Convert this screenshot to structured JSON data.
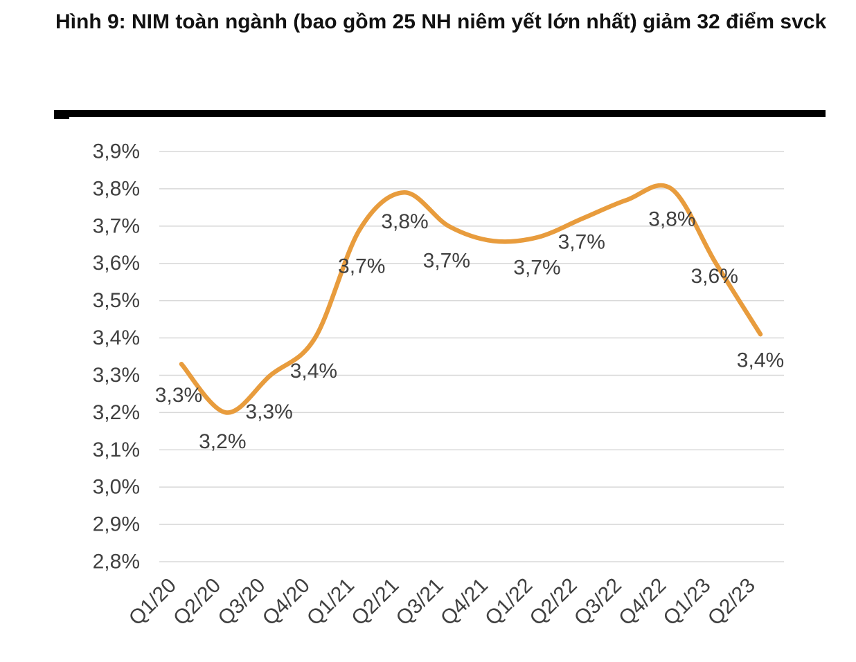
{
  "page": {
    "title": "Hình 9: NIM toàn ngành (bao gồm 25 NH niêm yết lớn nhất) giảm 32 điểm svck"
  },
  "chart_data": {
    "type": "line",
    "title": "Hình 9: NIM toàn ngành (bao gồm 25 NH niêm yết lớn nhất) giảm 32 điểm svck",
    "xlabel": "",
    "ylabel": "",
    "unit": "%",
    "decimal_separator": ",",
    "categories": [
      "Q1/20",
      "Q2/20",
      "Q3/20",
      "Q4/20",
      "Q1/21",
      "Q2/21",
      "Q3/21",
      "Q4/21",
      "Q1/22",
      "Q2/22",
      "Q3/22",
      "Q4/22",
      "Q1/23",
      "Q2/23"
    ],
    "values": [
      3.33,
      3.2,
      3.3,
      3.4,
      3.69,
      3.79,
      3.7,
      3.66,
      3.67,
      3.72,
      3.77,
      3.8,
      3.6,
      3.41
    ],
    "point_labels": [
      "3,3%",
      "3,2%",
      "3,3%",
      "3,4%",
      "3,7%",
      "3,8%",
      "3,7%",
      "",
      "3,7%",
      "3,7%",
      "",
      "3,8%",
      "3,6%",
      "3,4%"
    ],
    "ylim": [
      2.8,
      3.9
    ],
    "ytick_step": 0.1,
    "ytick_values": [
      3.9,
      3.8,
      3.7,
      3.6,
      3.5,
      3.4,
      3.3,
      3.2,
      3.1,
      3.0,
      2.9,
      2.8
    ],
    "ytick_labels": [
      "3,9%",
      "3,8%",
      "3,7%",
      "3,6%",
      "3,5%",
      "3,4%",
      "3,3%",
      "3,2%",
      "3,1%",
      "3,0%",
      "2,9%",
      "2,8%"
    ],
    "grid": "horizontal",
    "legend_position": "none",
    "line_smooth": true,
    "colors": {
      "line": "#E89C3D",
      "labels": "#404040",
      "grid": "#D8D8D8",
      "title": "#121212",
      "rule": "#000000"
    },
    "label_offsets": [
      [
        -4,
        45
      ],
      [
        -5,
        42
      ],
      [
        -2,
        53
      ],
      [
        -2,
        48
      ],
      [
        3,
        53
      ],
      [
        1,
        42
      ],
      [
        -3,
        50
      ],
      null,
      [
        -1,
        44
      ],
      [
        -1,
        34
      ],
      null,
      [
        1,
        44
      ],
      [
        -2,
        19
      ],
      [
        0,
        38
      ]
    ]
  }
}
